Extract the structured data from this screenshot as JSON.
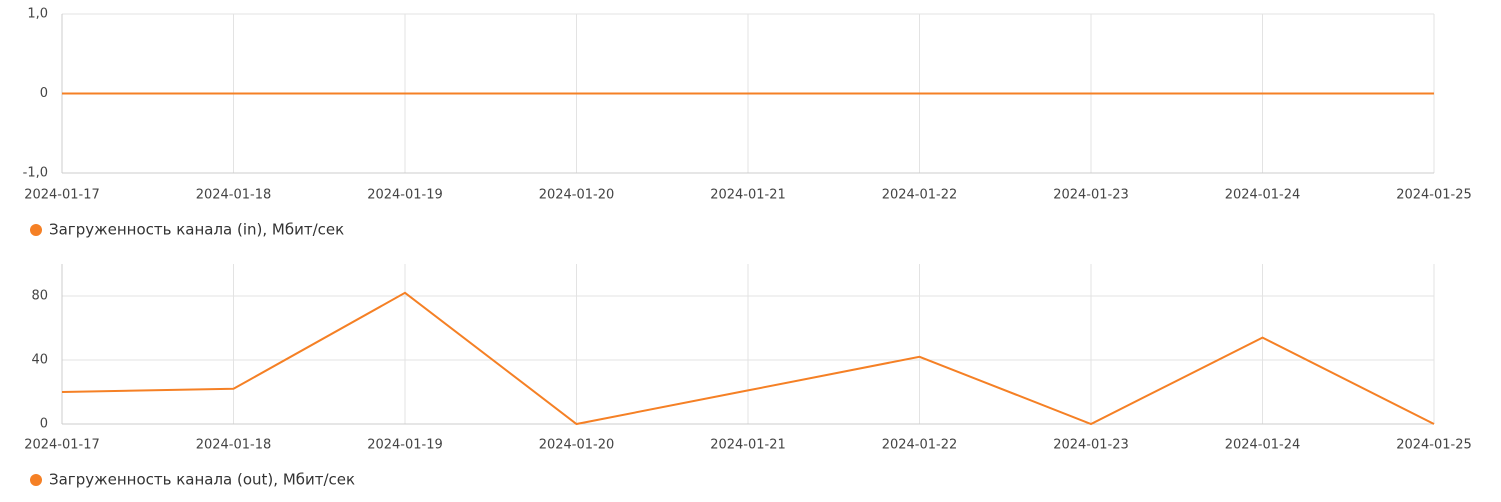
{
  "chart_data": [
    {
      "type": "line",
      "categories": [
        "2024-01-17",
        "2024-01-18",
        "2024-01-19",
        "2024-01-20",
        "2024-01-21",
        "2024-01-22",
        "2024-01-23",
        "2024-01-24",
        "2024-01-25"
      ],
      "series": [
        {
          "name": "Загруженность канала (in), Мбит/сек",
          "color": "#f58025",
          "values": [
            0,
            0,
            0,
            0,
            0,
            0,
            0,
            0,
            0
          ]
        }
      ],
      "ylim": [
        -1,
        1
      ],
      "yticks": [
        {
          "value": -1,
          "label": "-1,0"
        },
        0,
        {
          "value": 1,
          "label": "1,0"
        }
      ],
      "grid": true
    },
    {
      "type": "line",
      "categories": [
        "2024-01-17",
        "2024-01-18",
        "2024-01-19",
        "2024-01-20",
        "2024-01-21",
        "2024-01-22",
        "2024-01-23",
        "2024-01-24",
        "2024-01-25"
      ],
      "series": [
        {
          "name": "Загруженность канала (out), Мбит/сек",
          "color": "#f58025",
          "values": [
            20,
            22,
            82,
            0,
            21,
            42,
            0,
            54,
            0
          ]
        }
      ],
      "ylim": [
        0,
        100
      ],
      "yticks": [
        0,
        40,
        80
      ],
      "grid": true
    }
  ]
}
